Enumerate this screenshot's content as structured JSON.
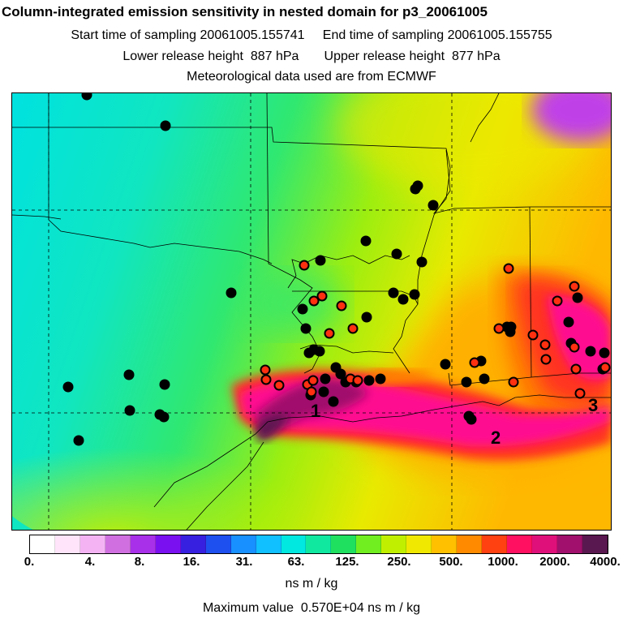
{
  "header": {
    "title": "Column-integrated emission sensitivity in nested domain for p3_20061005",
    "line1": "Start time of sampling 20061005.155741     End time of sampling 20061005.155755",
    "line2": "Lower release height  887 hPa       Upper release height  877 hPa",
    "line3": "Meteorological data used are from ECMWF"
  },
  "map": {
    "labels": [
      "1",
      "2",
      "3"
    ],
    "background_colors": {
      "low": "#00e6e0",
      "mid": "#26ec6a",
      "yellowgreen": "#c8f000",
      "yellow": "#f8e800",
      "orange": "#ff9a00",
      "red": "#ff3020",
      "magenta": "#ff1090",
      "purple": "#7a1468"
    },
    "marker_colors": {
      "black": "#000000",
      "red": "#ff3010"
    }
  },
  "colorbar": {
    "colors": [
      "#ffffff",
      "#ffe4fa",
      "#f4b4f4",
      "#d070e0",
      "#a830e8",
      "#7a10f0",
      "#3820e0",
      "#1e50f0",
      "#1890ff",
      "#10c0ff",
      "#00e8e0",
      "#10e8a0",
      "#20e060",
      "#70ee20",
      "#c0f000",
      "#f0e800",
      "#ffc000",
      "#ff8a00",
      "#ff4010",
      "#ff1060",
      "#e0107a",
      "#a0106c",
      "#5a1850"
    ],
    "tick_labels": [
      "0.",
      "4.",
      "8.",
      "16.",
      "31.",
      "63.",
      "125.",
      "250.",
      "500.",
      "1000.",
      "2000.",
      "4000."
    ],
    "units": "ns m / kg"
  },
  "footer": {
    "max_value": "Maximum value  0.570E+04 ns m / kg"
  }
}
